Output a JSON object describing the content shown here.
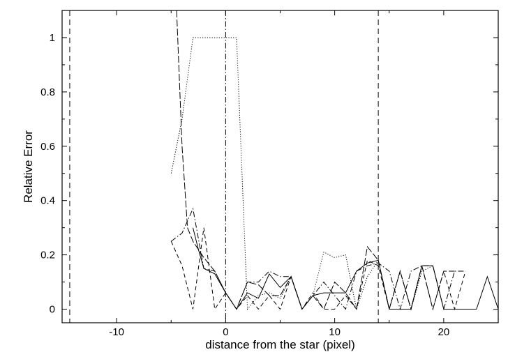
{
  "chart_data": {
    "type": "line",
    "xlabel": "distance from the star (pixel)",
    "ylabel": "Relative Error",
    "xlim": [
      -15,
      25
    ],
    "ylim": [
      -0.05,
      1.1
    ],
    "xticks": [
      -10,
      0,
      10,
      20
    ],
    "xticklabels": [
      "-10",
      "0",
      "10",
      "20"
    ],
    "yticks": [
      0,
      0.2,
      0.4,
      0.6,
      0.8,
      1
    ],
    "yticklabels": [
      "0",
      "0.2",
      "0.4",
      "0.6",
      "0.8",
      "1"
    ],
    "grid": false,
    "legend": "none",
    "reference_lines": [
      {
        "x": -14.3,
        "style": "dashed"
      },
      {
        "x": 0,
        "style": "dashdot"
      },
      {
        "x": 14,
        "style": "dashed"
      }
    ],
    "series": [
      {
        "style": "dotted",
        "x": [
          -5,
          -4,
          -3,
          -2,
          -1,
          0,
          1,
          2,
          3,
          4,
          5,
          6,
          7,
          8,
          9,
          10,
          11,
          12,
          13,
          14,
          15,
          16,
          17,
          18,
          19,
          20
        ],
        "y": [
          0.5,
          0.7,
          1.0,
          1.0,
          1.0,
          1.0,
          1.0,
          0.0,
          0.05,
          0.06,
          0.04,
          0.12,
          0.0,
          0.05,
          0.21,
          0.19,
          0.2,
          0.0,
          0.12,
          0.18,
          0.0,
          0.14,
          0.0,
          0.14,
          0.16,
          0.0
        ]
      },
      {
        "style": "long-dash",
        "x": [
          -4.5,
          -4,
          -3.5,
          -3,
          -2,
          -1,
          0,
          1,
          2,
          3,
          4,
          5,
          6,
          7,
          8,
          9,
          10,
          11,
          12,
          13,
          14,
          15,
          16,
          17,
          18,
          19,
          20,
          21
        ],
        "y": [
          1.1,
          0.6,
          0.3,
          0.25,
          0.19,
          0.14,
          0.06,
          0.0,
          0.1,
          0.09,
          0.05,
          0.05,
          0.12,
          0.0,
          0.05,
          0.0,
          0.1,
          0.06,
          0.0,
          0.23,
          0.18,
          0.0,
          0.14,
          0.0,
          0.16,
          0.0,
          0.14,
          0.14
        ]
      },
      {
        "style": "dashed",
        "x": [
          -5,
          -4,
          -3,
          -2,
          -1,
          0,
          1,
          2,
          3,
          4,
          5,
          6,
          7,
          8,
          9,
          10,
          11,
          12,
          13,
          14,
          15,
          16,
          17,
          18,
          19,
          20,
          21,
          22
        ],
        "y": [
          0.25,
          0.16,
          0.0,
          0.3,
          0.0,
          0.06,
          0.0,
          0.05,
          0.0,
          0.05,
          0.0,
          0.12,
          0.0,
          0.06,
          0.0,
          0.0,
          0.05,
          0.0,
          0.18,
          0.16,
          0.0,
          0.14,
          0.0,
          0.16,
          0.0,
          0.14,
          0.0,
          0.14
        ]
      },
      {
        "style": "dash-dot",
        "x": [
          -5,
          -4,
          -3,
          -2,
          -1,
          0,
          1,
          2,
          3,
          4,
          5,
          6,
          7,
          8,
          9,
          10,
          11,
          12,
          13,
          14,
          15,
          16,
          17,
          18,
          19,
          20,
          21,
          22
        ],
        "y": [
          0.25,
          0.28,
          0.37,
          0.15,
          0.14,
          0.06,
          0.0,
          0.1,
          0.1,
          0.14,
          0.12,
          0.12,
          0.0,
          0.05,
          0.1,
          0.05,
          0.0,
          0.14,
          0.16,
          0.17,
          0.14,
          0.0,
          0.14,
          0.16,
          0.16,
          0.0,
          0.14,
          0.14
        ]
      },
      {
        "style": "solid",
        "x": [
          -3,
          -2.5,
          -2,
          -1,
          0,
          1,
          2,
          3,
          4,
          5,
          6,
          7,
          8,
          9,
          10,
          11,
          12,
          13,
          14,
          15,
          16,
          17,
          18,
          19,
          20,
          21,
          22,
          23,
          24,
          25
        ],
        "y": [
          0.3,
          0.22,
          0.15,
          0.13,
          0.06,
          0.0,
          0.06,
          0.04,
          0.13,
          0.08,
          0.12,
          0.0,
          0.05,
          0.06,
          0.06,
          0.06,
          0.14,
          0.17,
          0.18,
          0.0,
          0.0,
          0.0,
          0.16,
          0.16,
          0.0,
          0.0,
          0.0,
          0.0,
          0.12,
          0.0
        ]
      }
    ]
  }
}
